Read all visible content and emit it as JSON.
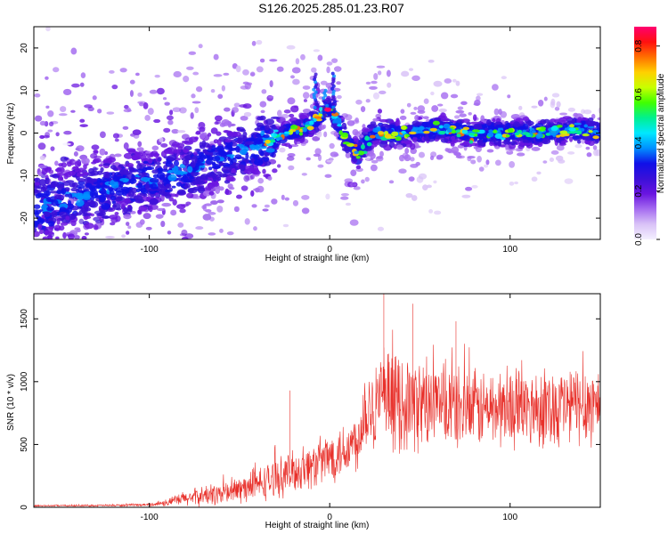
{
  "title": "S126.2025.285.01.23.R07",
  "chart_data": [
    {
      "type": "heatmap",
      "description_role": "spectrogram",
      "xlabel": "Height of straight line (km)",
      "ylabel": "Frequency (Hz)",
      "xlim": [
        -164,
        150
      ],
      "ylim": [
        -25,
        25
      ],
      "xticks": [
        -100,
        0,
        100
      ],
      "xtick_labels": [
        "-100",
        "0",
        "100"
      ],
      "yticks": [
        -20,
        -10,
        0,
        10,
        20
      ],
      "ytick_labels": [
        "-20",
        "-10",
        "0",
        "10",
        "20"
      ],
      "ridge": {
        "x": [
          -164,
          -140,
          -120,
          -100,
          -80,
          -60,
          -40,
          -25,
          -15,
          -8,
          -3,
          0,
          3,
          6,
          10,
          15,
          25,
          40,
          60,
          80,
          100,
          120,
          140,
          150
        ],
        "freq": [
          -18,
          -15,
          -13,
          -11,
          -9,
          -6,
          -3,
          0,
          1,
          3,
          5,
          6,
          4,
          1,
          -2,
          -5,
          0,
          0,
          1,
          0,
          0,
          0,
          1,
          0
        ]
      },
      "colorbar": {
        "label": "Normalized spectral amplitude",
        "ticks": [
          0.0,
          0.2,
          0.4,
          0.6,
          0.8
        ],
        "tick_labels": [
          "0.0",
          "0.2",
          "0.4",
          "0.6",
          "0.8"
        ],
        "range": [
          0,
          0.88
        ],
        "colors": [
          "#f4f0ff",
          "#d9c2f7",
          "#a56cf0",
          "#6a15e0",
          "#3a10d8",
          "#1010e8",
          "#0090ff",
          "#00e8ff",
          "#00f090",
          "#40ff00",
          "#c8ff00",
          "#ffd000",
          "#ff7000",
          "#ff1010",
          "#ff0070"
        ]
      }
    },
    {
      "type": "line",
      "xlabel": "Height of straight line (km)",
      "ylabel": "SNR (10 * v/v)",
      "xlim": [
        -164,
        150
      ],
      "ylim": [
        0,
        1700
      ],
      "xticks": [
        -100,
        0,
        100
      ],
      "xtick_labels": [
        "-100",
        "0",
        "100"
      ],
      "yticks": [
        0,
        500,
        1000,
        1500
      ],
      "ytick_labels": [
        "0",
        "500",
        "1000",
        "1500"
      ],
      "line_color": "#e8302a",
      "envelope": {
        "x": [
          -164,
          -120,
          -100,
          -90,
          -80,
          -70,
          -60,
          -50,
          -40,
          -30,
          -20,
          -10,
          0,
          10,
          17,
          18,
          25,
          30,
          40,
          50,
          60,
          80,
          100,
          120,
          140,
          150
        ],
        "mean": [
          12,
          15,
          20,
          40,
          70,
          90,
          110,
          140,
          180,
          230,
          280,
          330,
          400,
          480,
          550,
          780,
          820,
          850,
          830,
          820,
          800,
          780,
          790,
          800,
          820,
          830
        ],
        "spread": [
          6,
          8,
          12,
          30,
          60,
          80,
          90,
          110,
          130,
          150,
          160,
          180,
          200,
          220,
          230,
          330,
          360,
          380,
          370,
          350,
          330,
          300,
          300,
          310,
          320,
          330
        ],
        "peaks": [
          [
            30,
            1700
          ],
          [
            46,
            1620
          ],
          [
            -22,
            930
          ],
          [
            70,
            1480
          ]
        ]
      }
    }
  ]
}
